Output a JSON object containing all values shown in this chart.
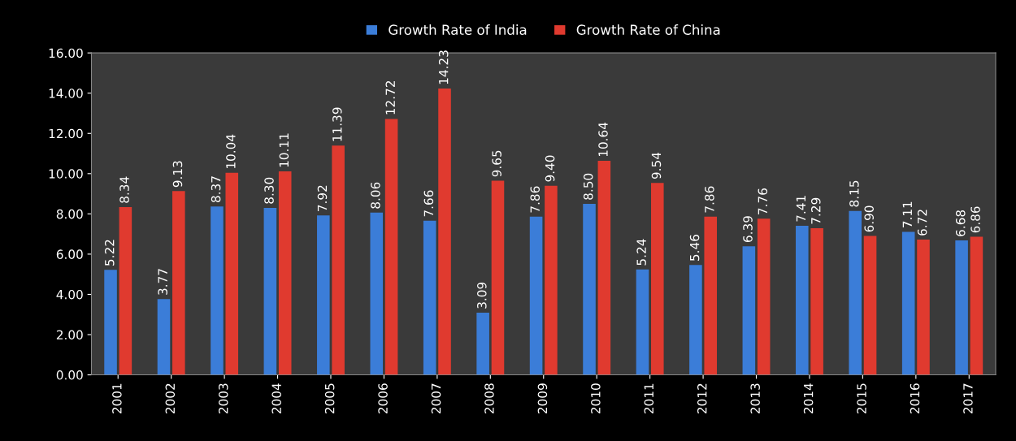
{
  "chart_data": {
    "type": "bar",
    "categories": [
      "2001",
      "2002",
      "2003",
      "2004",
      "2005",
      "2006",
      "2007",
      "2008",
      "2009",
      "2010",
      "2011",
      "2012",
      "2013",
      "2014",
      "2015",
      "2016",
      "2017"
    ],
    "series": [
      {
        "name": "Growth Rate of India",
        "color": "#3b7dd8",
        "values": [
          5.22,
          3.77,
          8.37,
          8.3,
          7.92,
          8.06,
          7.66,
          3.09,
          7.86,
          8.5,
          5.24,
          5.46,
          6.39,
          7.41,
          8.15,
          7.11,
          6.68
        ],
        "value_labels": [
          "5.22",
          "3.77",
          "8.37",
          "8.30",
          "7.92",
          "8.06",
          "7.66",
          "3.09",
          "7.86",
          "8.50",
          "5.24",
          "5.46",
          "6.39",
          "7.41",
          "8.15",
          "7.11",
          "6.68"
        ]
      },
      {
        "name": "Growth Rate of China",
        "color": "#e03a2f",
        "values": [
          8.34,
          9.13,
          10.04,
          10.11,
          11.39,
          12.72,
          14.23,
          9.65,
          9.4,
          10.64,
          9.54,
          7.86,
          7.76,
          7.29,
          6.9,
          6.72,
          6.86
        ],
        "value_labels": [
          "8.34",
          "9.13",
          "10.04",
          "10.11",
          "11.39",
          "12.72",
          "14.23",
          "9.65",
          "9.40",
          "10.64",
          "9.54",
          "7.86",
          "7.76",
          "7.29",
          "6.90",
          "6.72",
          "6.86"
        ]
      }
    ],
    "ylim": [
      0,
      16
    ],
    "yticks": [
      {
        "value": 0,
        "label": "0.00"
      },
      {
        "value": 2,
        "label": "2.00"
      },
      {
        "value": 4,
        "label": "4.00"
      },
      {
        "value": 6,
        "label": "6.00"
      },
      {
        "value": 8,
        "label": "8.00"
      },
      {
        "value": 10,
        "label": "10.00"
      },
      {
        "value": 12,
        "label": "12.00"
      },
      {
        "value": 14,
        "label": "14.00"
      },
      {
        "value": 16,
        "label": "16.00"
      }
    ],
    "grid": false,
    "legend": "top"
  }
}
